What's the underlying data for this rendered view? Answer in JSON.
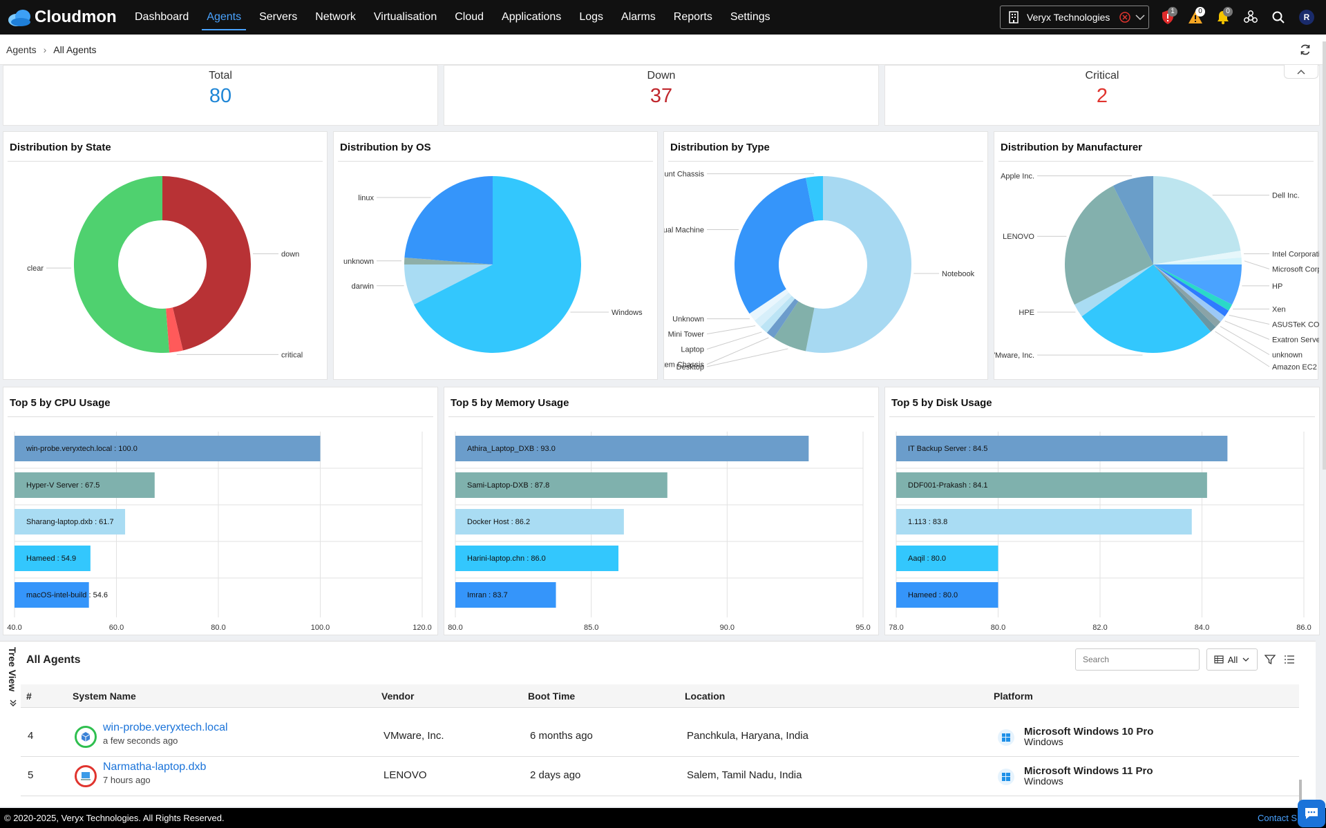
{
  "app": {
    "name": "Cloudmon",
    "nav": [
      "Dashboard",
      "Agents",
      "Servers",
      "Network",
      "Virtualisation",
      "Cloud",
      "Applications",
      "Logs",
      "Alarms",
      "Reports",
      "Settings"
    ],
    "active_nav": "Agents",
    "tenant": "Veryx Technologies",
    "badges": {
      "shield": "1",
      "warning": "0",
      "bell": "0"
    },
    "avatar": "R",
    "accent": "#4aa3ff"
  },
  "breadcrumb": {
    "root": "Agents",
    "current": "All Agents"
  },
  "kpis": [
    {
      "label": "Total",
      "value": "80",
      "color": "#1f86d6"
    },
    {
      "label": "Down",
      "value": "37",
      "color": "#c0272d"
    },
    {
      "label": "Critical",
      "value": "2",
      "color": "#e0342e"
    }
  ],
  "panels": {
    "state": "Distribution by State",
    "os": "Distribution by OS",
    "type": "Distribution by Type",
    "manufacturer": "Distribution by Manufacturer",
    "cpu": "Top 5 by CPU Usage",
    "memory": "Top 5 by Memory Usage",
    "disk": "Top 5 by Disk Usage"
  },
  "chart_data": [
    {
      "type": "pie",
      "donut": true,
      "title": "Distribution by State",
      "slices": [
        {
          "label": "down",
          "value": 37,
          "color": "#b83235"
        },
        {
          "label": "critical",
          "value": 2,
          "color": "#ff5a5a"
        },
        {
          "label": "clear",
          "value": 41,
          "color": "#4fd16f"
        }
      ]
    },
    {
      "type": "pie",
      "donut": false,
      "title": "Distribution by OS",
      "slices": [
        {
          "label": "Windows",
          "value": 54,
          "color": "#33c7fd"
        },
        {
          "label": "darwin",
          "value": 6,
          "color": "#a9dcf3"
        },
        {
          "label": "unknown",
          "value": 1,
          "color": "#8eafa8"
        },
        {
          "label": "linux",
          "value": 19,
          "color": "#3595fa"
        }
      ]
    },
    {
      "type": "pie",
      "donut": true,
      "title": "Distribution by Type",
      "slices": [
        {
          "label": "Notebook",
          "value": 34,
          "color": "#a7d9f2"
        },
        {
          "label": "Desktop",
          "value": 4,
          "color": "#82b0aa"
        },
        {
          "label": "Main System Chassis",
          "value": 1,
          "color": "#6c9ccb"
        },
        {
          "label": "Laptop",
          "value": 1,
          "color": "#bce4f5"
        },
        {
          "label": "Mini Tower",
          "value": 1,
          "color": "#d7effa"
        },
        {
          "label": "Unknown",
          "value": 1,
          "color": "#e9f6fd"
        },
        {
          "label": "Virtual Machine",
          "value": 20,
          "color": "#3595fa"
        },
        {
          "label": "Mount Chassis",
          "value": 2,
          "color": "#33c7fd"
        }
      ]
    },
    {
      "type": "pie",
      "donut": false,
      "title": "Distribution by Manufacturer",
      "slices": [
        {
          "label": "Dell Inc.",
          "value": 18,
          "color": "#bde5ef"
        },
        {
          "label": "Intel Corporation",
          "value": 1,
          "color": "#e6f7fb"
        },
        {
          "label": "Microsoft Corporat",
          "value": 1,
          "color": "#d2f3fb"
        },
        {
          "label": "HP",
          "value": 6,
          "color": "#4aa3ff"
        },
        {
          "label": "Xen",
          "value": 1,
          "color": "#2ad9c8"
        },
        {
          "label": "ASUSTeK COMPUTE",
          "value": 1,
          "color": "#2f7bff"
        },
        {
          "label": "Exatron Servers Ma",
          "value": 1,
          "color": "#9cc9f7"
        },
        {
          "label": "unknown",
          "value": 1,
          "color": "#8aa3a7"
        },
        {
          "label": "Amazon EC2",
          "value": 1,
          "color": "#6a96a3"
        },
        {
          "label": "VMware, Inc.",
          "value": 21,
          "color": "#33c7fd"
        },
        {
          "label": "HPE",
          "value": 2,
          "color": "#a9dcf3"
        },
        {
          "label": "LENOVO",
          "value": 20,
          "color": "#83b0ad"
        },
        {
          "label": "Apple Inc.",
          "value": 6,
          "color": "#6a9ec9"
        }
      ]
    },
    {
      "type": "bar",
      "orientation": "horizontal",
      "title": "Top 5 by CPU Usage",
      "xlim": [
        40,
        120
      ],
      "ticks": [
        "40.0",
        "60.0",
        "80.0",
        "100.0",
        "120.0"
      ],
      "bars": [
        {
          "label": "win-probe.veryxtech.local : 100.0",
          "value": 100.0,
          "color": "#6b9dcb"
        },
        {
          "label": "Hyper-V Server : 67.5",
          "value": 67.5,
          "color": "#7fb1ad"
        },
        {
          "label": "Sharang-laptop.dxb : 61.7",
          "value": 61.7,
          "color": "#a9dcf3"
        },
        {
          "label": "Hameed : 54.9",
          "value": 54.9,
          "color": "#33c7fd"
        },
        {
          "label": "macOS-intel-build : 54.6",
          "value": 54.6,
          "color": "#3595fa"
        }
      ]
    },
    {
      "type": "bar",
      "orientation": "horizontal",
      "title": "Top 5 by Memory Usage",
      "xlim": [
        80,
        95
      ],
      "ticks": [
        "80.0",
        "85.0",
        "90.0",
        "95.0"
      ],
      "bars": [
        {
          "label": "Athira_Laptop_DXB : 93.0",
          "value": 93.0,
          "color": "#6b9dcb"
        },
        {
          "label": "Sami-Laptop-DXB : 87.8",
          "value": 87.8,
          "color": "#7fb1ad"
        },
        {
          "label": "Docker Host : 86.2",
          "value": 86.2,
          "color": "#a9dcf3"
        },
        {
          "label": "Harini-laptop.chn : 86.0",
          "value": 86.0,
          "color": "#33c7fd"
        },
        {
          "label": "Imran : 83.7",
          "value": 83.7,
          "color": "#3595fa"
        }
      ]
    },
    {
      "type": "bar",
      "orientation": "horizontal",
      "title": "Top 5 by Disk Usage",
      "xlim": [
        78,
        86
      ],
      "ticks": [
        "78.0",
        "80.0",
        "82.0",
        "84.0",
        "86.0"
      ],
      "bars": [
        {
          "label": "IT Backup Server : 84.5",
          "value": 84.5,
          "color": "#6b9dcb"
        },
        {
          "label": "DDF001-Prakash : 84.1",
          "value": 84.1,
          "color": "#7fb1ad"
        },
        {
          "label": "1.113 : 83.8",
          "value": 83.8,
          "color": "#a9dcf3"
        },
        {
          "label": "Aaqil : 80.0",
          "value": 80.0,
          "color": "#33c7fd"
        },
        {
          "label": "Hameed : 80.0",
          "value": 80.0,
          "color": "#3595fa"
        }
      ]
    }
  ],
  "agents": {
    "tree_view": "Tree View",
    "title": "All Agents",
    "search_placeholder": "Search",
    "filter_value": "All",
    "columns": [
      "#",
      "System Name",
      "Vendor",
      "Boot Time",
      "Location",
      "Platform"
    ],
    "rows": [
      {
        "num": "4",
        "name": "win-probe.veryxtech.local",
        "seen": "a few seconds ago",
        "status": "#2fbf4f",
        "vendor": "VMware, Inc.",
        "boot": "6 months ago",
        "location": "Panchkula, Haryana, India",
        "platform": "Microsoft Windows 10 Pro",
        "family": "Windows"
      },
      {
        "num": "5",
        "name": "Narmatha-laptop.dxb",
        "seen": "7 hours ago",
        "status": "#e0342e",
        "vendor": "LENOVO",
        "boot": "2 days ago",
        "location": "Salem, Tamil Nadu, India",
        "platform": "Microsoft Windows 11 Pro",
        "family": "Windows"
      }
    ]
  },
  "footer": {
    "copyright": "© 2020-2025, Veryx Technologies. All Rights Reserved.",
    "contact": "Contact S"
  }
}
